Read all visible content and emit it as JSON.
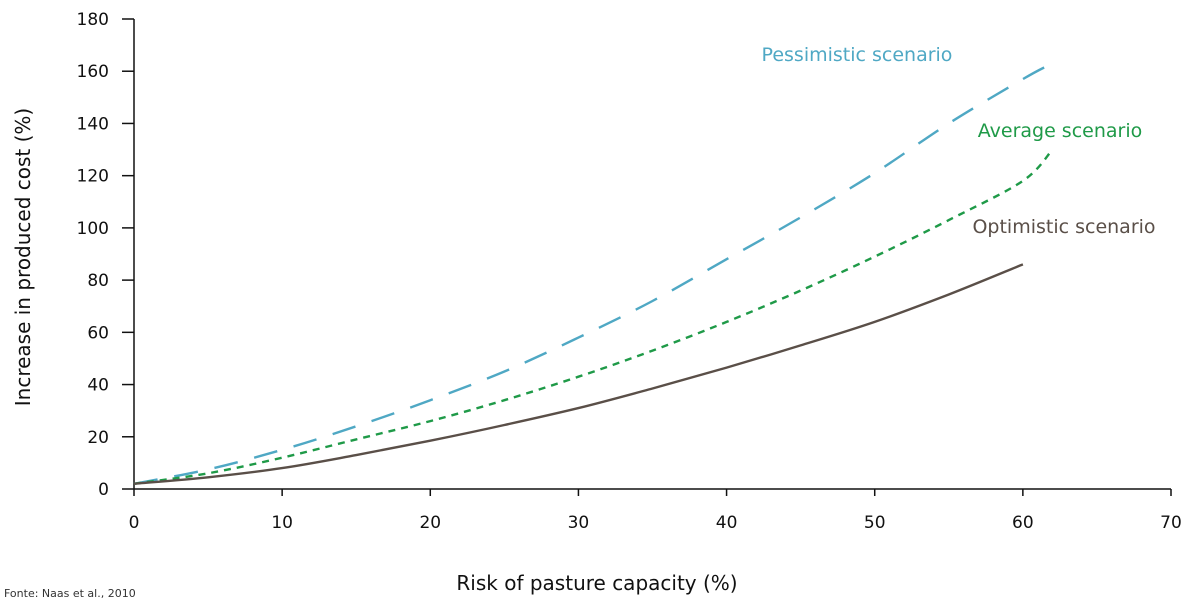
{
  "chart_data": {
    "type": "line",
    "title": "",
    "xlabel": "Risk of pasture capacity (%)",
    "ylabel": "Increase in produced cost (%)",
    "xlim": [
      0,
      70
    ],
    "ylim": [
      0,
      180
    ],
    "xticks": [
      0,
      10,
      20,
      30,
      40,
      50,
      60,
      70
    ],
    "yticks": [
      0,
      20,
      40,
      60,
      80,
      100,
      120,
      140,
      160,
      180
    ],
    "grid": false,
    "legend": "inline labels",
    "source_note": "Fonte: Naas et al., 2010",
    "series": [
      {
        "name": "Pessimistic scenario",
        "color": "#4fa8c4",
        "dash": "long-dash",
        "x": [
          0,
          5,
          10,
          15,
          20,
          25,
          30,
          35,
          40,
          45,
          50,
          55,
          60,
          62
        ],
        "y": [
          2,
          7.5,
          15,
          24,
          34,
          45,
          58,
          72,
          88,
          104,
          121,
          140,
          157,
          163
        ]
      },
      {
        "name": "Average scenario",
        "color": "#1f9a48",
        "dash": "short-dash",
        "x": [
          0,
          5,
          10,
          15,
          20,
          25,
          30,
          35,
          40,
          45,
          50,
          55,
          60,
          62
        ],
        "y": [
          2,
          6,
          12,
          19,
          26,
          34,
          43,
          53,
          64,
          76,
          89,
          103,
          118,
          130
        ]
      },
      {
        "name": "Optimistic scenario",
        "color": "#5a4f48",
        "dash": "solid",
        "x": [
          0,
          5,
          10,
          15,
          20,
          25,
          30,
          35,
          40,
          45,
          50,
          55,
          60
        ],
        "y": [
          2,
          4.5,
          8,
          13,
          18.5,
          24.5,
          31,
          38.5,
          46.5,
          55,
          64,
          74.5,
          86
        ]
      }
    ]
  }
}
